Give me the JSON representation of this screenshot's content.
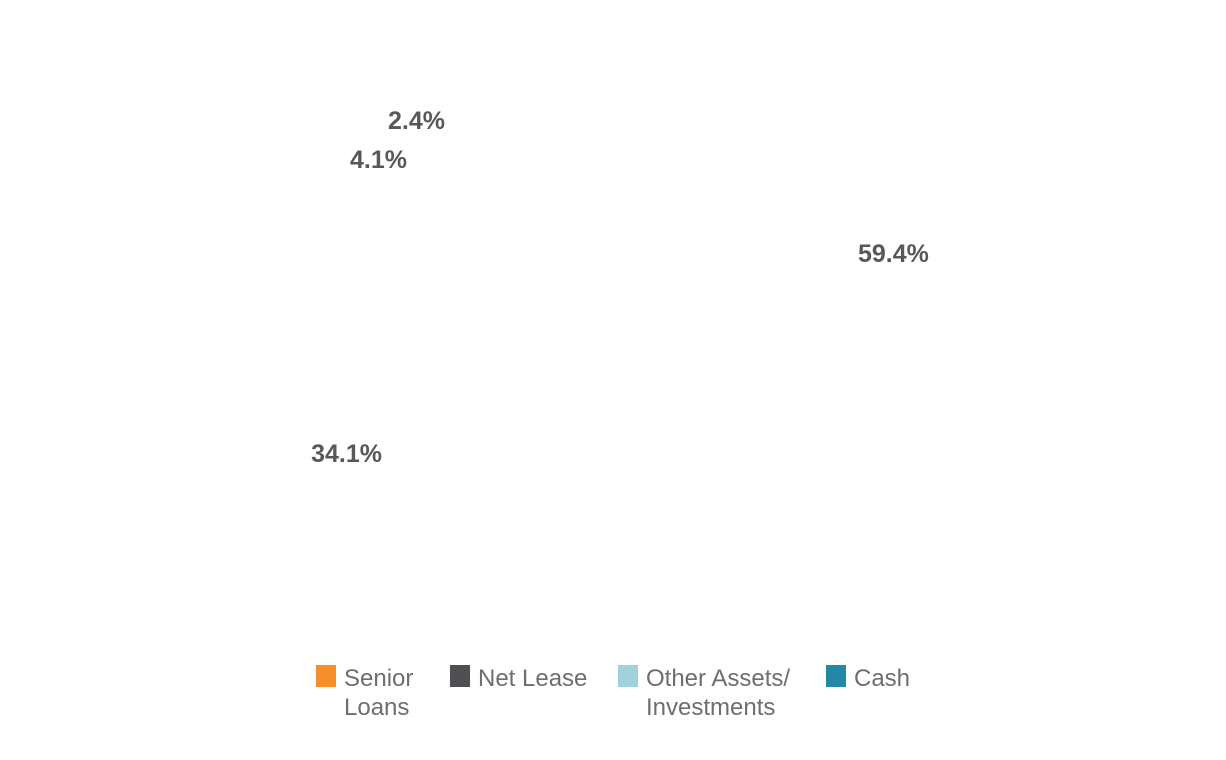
{
  "chart_data": {
    "type": "pie",
    "donut": true,
    "legend_position": "bottom",
    "slices": [
      {
        "label": "Senior\nLoans",
        "value": 59.4,
        "display": "59.4%",
        "color": "#f48f2b"
      },
      {
        "label": "Net Lease",
        "value": 34.1,
        "display": "34.1%",
        "color": "#4f5054"
      },
      {
        "label": "Other Assets/\nInvestments",
        "value": 4.1,
        "display": "4.1%",
        "color": "#a2d1dd"
      },
      {
        "label": "Cash",
        "value": 2.4,
        "display": "2.4%",
        "color": "#2288a6"
      }
    ]
  }
}
